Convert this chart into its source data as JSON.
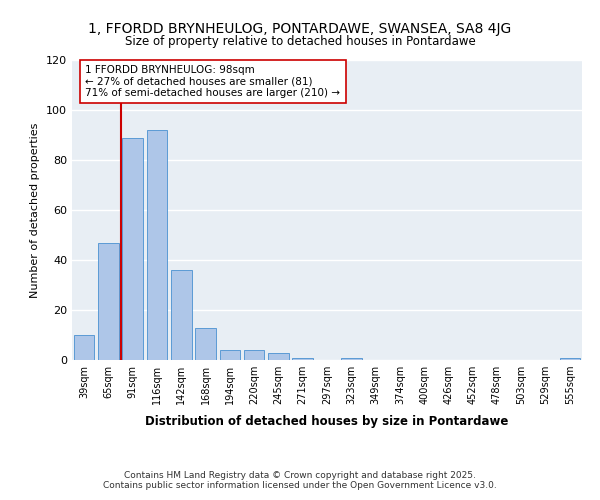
{
  "title1": "1, FFORDD BRYNHEULOG, PONTARDAWE, SWANSEA, SA8 4JG",
  "title2": "Size of property relative to detached houses in Pontardawe",
  "xlabel": "Distribution of detached houses by size in Pontardawe",
  "ylabel": "Number of detached properties",
  "categories": [
    "39sqm",
    "65sqm",
    "91sqm",
    "116sqm",
    "142sqm",
    "168sqm",
    "194sqm",
    "220sqm",
    "245sqm",
    "271sqm",
    "297sqm",
    "323sqm",
    "349sqm",
    "374sqm",
    "400sqm",
    "426sqm",
    "452sqm",
    "478sqm",
    "503sqm",
    "529sqm",
    "555sqm"
  ],
  "values": [
    10,
    47,
    89,
    92,
    36,
    13,
    4,
    4,
    3,
    1,
    0,
    1,
    0,
    0,
    0,
    0,
    0,
    0,
    0,
    0,
    1
  ],
  "bar_color": "#aec6e8",
  "bar_edge_color": "#5b9bd5",
  "property_line_color": "#cc0000",
  "annotation_text": "1 FFORDD BRYNHEULOG: 98sqm\n← 27% of detached houses are smaller (81)\n71% of semi-detached houses are larger (210) →",
  "annotation_box_color": "#ffffff",
  "annotation_box_edge": "#cc0000",
  "ylim": [
    0,
    120
  ],
  "yticks": [
    0,
    20,
    40,
    60,
    80,
    100,
    120
  ],
  "background_color": "#e8eef4",
  "footer1": "Contains HM Land Registry data © Crown copyright and database right 2025.",
  "footer2": "Contains public sector information licensed under the Open Government Licence v3.0.",
  "fig_width": 6.0,
  "fig_height": 5.0,
  "dpi": 100
}
